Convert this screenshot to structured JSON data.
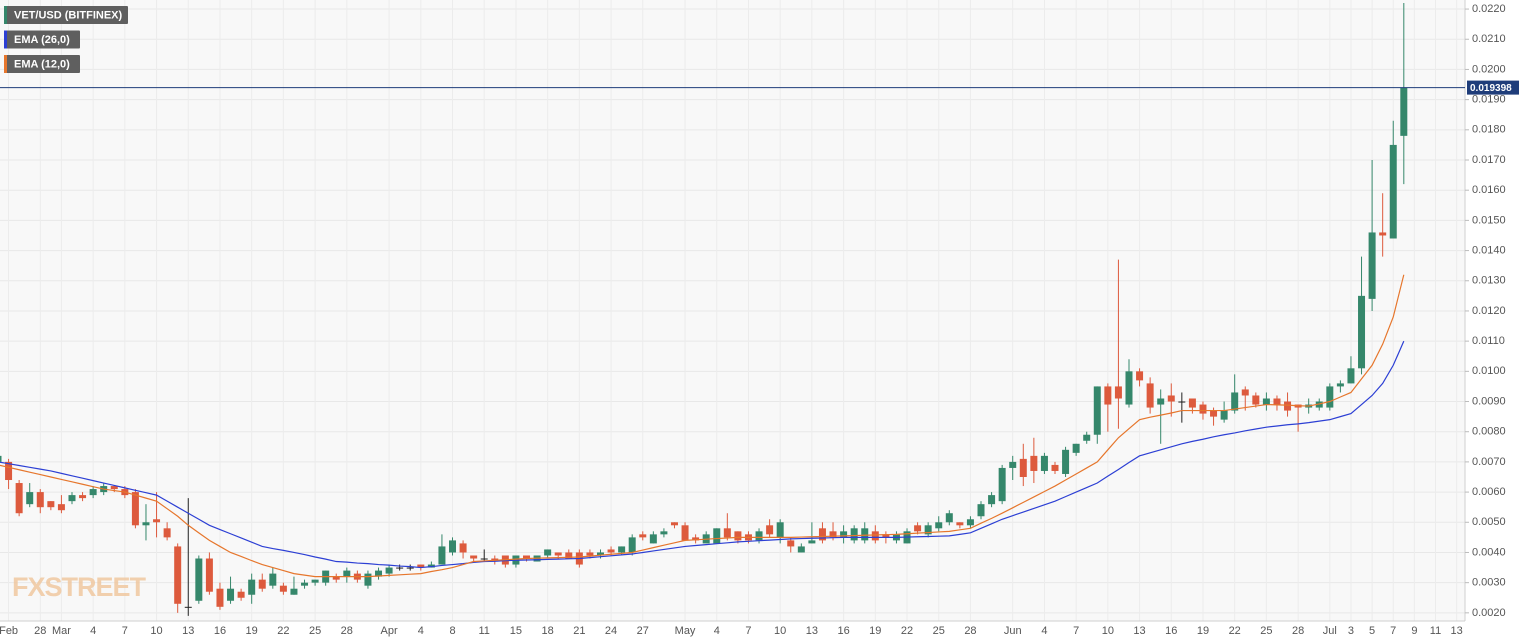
{
  "chart_data": {
    "type": "candlestick",
    "name": "VET/USD (BITFINEX)",
    "watermark": "FXSTREET",
    "up_color": "#35876b",
    "down_color": "#dd5a3d",
    "doji_color": "#222222",
    "last_price_color": "#1f3d7a",
    "grid": true,
    "ylim": [
      0.00173,
      0.0223
    ],
    "yticks": [
      {
        "value": 0.002,
        "label": "0.0020"
      },
      {
        "value": 0.003,
        "label": "0.0030"
      },
      {
        "value": 0.004,
        "label": "0.0040"
      },
      {
        "value": 0.005,
        "label": "0.0050"
      },
      {
        "value": 0.006,
        "label": "0.0060"
      },
      {
        "value": 0.007,
        "label": "0.0070"
      },
      {
        "value": 0.008,
        "label": "0.0080"
      },
      {
        "value": 0.009,
        "label": "0.0090"
      },
      {
        "value": 0.01,
        "label": "0.0100"
      },
      {
        "value": 0.011,
        "label": "0.0110"
      },
      {
        "value": 0.012,
        "label": "0.0120"
      },
      {
        "value": 0.013,
        "label": "0.0130"
      },
      {
        "value": 0.014,
        "label": "0.0140"
      },
      {
        "value": 0.015,
        "label": "0.0150"
      },
      {
        "value": 0.016,
        "label": "0.0160"
      },
      {
        "value": 0.017,
        "label": "0.0170"
      },
      {
        "value": 0.018,
        "label": "0.0180"
      },
      {
        "value": 0.019,
        "label": "0.0190"
      },
      {
        "value": 0.02,
        "label": "0.0200"
      },
      {
        "value": 0.021,
        "label": "0.0210"
      },
      {
        "value": 0.022,
        "label": "0.0220"
      }
    ],
    "categories": [
      null,
      "Feb",
      null,
      null,
      "28",
      null,
      "Mar",
      null,
      null,
      "4",
      null,
      null,
      "7",
      null,
      null,
      "10",
      null,
      null,
      "13",
      null,
      null,
      "16",
      null,
      null,
      "19",
      null,
      null,
      "22",
      null,
      null,
      "25",
      null,
      null,
      "28",
      null,
      null,
      null,
      "Apr",
      null,
      null,
      "4",
      null,
      null,
      "8",
      null,
      null,
      "11",
      null,
      null,
      "15",
      null,
      null,
      "18",
      null,
      null,
      "21",
      null,
      null,
      "24",
      null,
      null,
      "27",
      null,
      null,
      null,
      "May",
      null,
      null,
      "4",
      null,
      null,
      "7",
      null,
      null,
      "10",
      null,
      null,
      "13",
      null,
      null,
      "16",
      null,
      null,
      "19",
      null,
      null,
      "22",
      null,
      null,
      "25",
      null,
      null,
      "28",
      null,
      null,
      null,
      "Jun",
      null,
      null,
      "4",
      null,
      null,
      "7",
      null,
      null,
      "10",
      null,
      null,
      "13",
      null,
      null,
      "16",
      null,
      null,
      "19",
      null,
      null,
      "22",
      null,
      null,
      "25",
      null,
      null,
      "28",
      null,
      null,
      "Jul",
      null,
      "3",
      null,
      "5",
      null,
      "7",
      null,
      "9",
      null,
      "11",
      null,
      "13"
    ],
    "open": [
      0.007,
      0.007,
      0.0063,
      0.0056,
      0.006,
      0.0057,
      0.0056,
      0.0057,
      0.0059,
      0.0059,
      0.006,
      0.0062,
      0.0061,
      0.006,
      0.0049,
      0.0051,
      0.0048,
      0.0042,
      0.0022,
      0.0024,
      0.0038,
      0.0028,
      0.0024,
      0.0027,
      0.0026,
      0.0031,
      0.0029,
      0.0029,
      0.0026,
      0.0029,
      0.003,
      0.003,
      0.0032,
      0.0032,
      0.0033,
      0.0029,
      0.0032,
      0.0033,
      0.0035,
      0.0035,
      0.0036,
      0.0035,
      0.0036,
      0.004,
      0.0043,
      0.0039,
      0.0038,
      0.0038,
      0.0039,
      0.0036,
      0.0039,
      0.0037,
      0.0039,
      0.004,
      0.004,
      0.004,
      0.004,
      0.0039,
      0.0041,
      0.004,
      0.004,
      0.0046,
      0.0043,
      0.0046,
      0.005,
      0.0049,
      0.0045,
      0.0043,
      0.0043,
      0.0048,
      0.0047,
      0.0046,
      0.0044,
      0.0049,
      0.0045,
      0.0044,
      0.004,
      0.0043,
      0.0048,
      0.0047,
      0.0045,
      0.0044,
      0.0044,
      0.0047,
      0.0046,
      0.0044,
      0.0043,
      0.0049,
      0.0046,
      0.0048,
      0.005,
      0.005,
      0.0049,
      0.0052,
      0.0056,
      0.0057,
      0.0068,
      0.0071,
      0.0072,
      0.0067,
      0.0069,
      0.0066,
      0.0073,
      0.0077,
      0.0079,
      0.0095,
      0.0095,
      0.0089,
      0.01,
      0.0096,
      0.0089,
      0.0092,
      0.009,
      0.0091,
      0.0089,
      0.0087,
      0.0084,
      0.0087,
      0.0094,
      0.0092,
      0.0089,
      0.0091,
      0.009,
      0.0089,
      0.0088,
      0.0088,
      0.0088,
      0.0095,
      0.0096,
      0.0101,
      0.0124,
      0.0146,
      0.0144,
      0.0178,
      null,
      null,
      null,
      null,
      null
    ],
    "high": [
      0.0073,
      0.0071,
      0.0064,
      0.0063,
      0.0061,
      0.0057,
      0.0059,
      0.006,
      0.006,
      0.0062,
      0.0063,
      0.0062,
      0.0062,
      0.0061,
      0.0056,
      0.006,
      0.005,
      0.0043,
      0.0058,
      0.0039,
      0.004,
      0.003,
      0.0032,
      0.0028,
      0.0033,
      0.0033,
      0.0035,
      0.003,
      0.0032,
      0.0031,
      0.0031,
      0.0034,
      0.0033,
      0.0035,
      0.0034,
      0.0034,
      0.0035,
      0.0036,
      0.0036,
      0.0036,
      0.0036,
      0.0037,
      0.0046,
      0.0045,
      0.0044,
      0.0039,
      0.0041,
      0.0039,
      0.0039,
      0.0039,
      0.0039,
      0.0039,
      0.0041,
      0.004,
      0.0041,
      0.0041,
      0.0041,
      0.0041,
      0.0042,
      0.0042,
      0.0046,
      0.0047,
      0.0047,
      0.0048,
      0.005,
      0.005,
      0.0046,
      0.0047,
      0.0048,
      0.0053,
      0.0047,
      0.0047,
      0.0048,
      0.0051,
      0.0051,
      0.0045,
      0.0043,
      0.005,
      0.005,
      0.005,
      0.0049,
      0.0049,
      0.005,
      0.0049,
      0.0047,
      0.0047,
      0.0048,
      0.005,
      0.005,
      0.0052,
      0.0054,
      0.005,
      0.0052,
      0.0057,
      0.006,
      0.0069,
      0.0072,
      0.0076,
      0.0078,
      0.0073,
      0.007,
      0.0075,
      0.0076,
      0.008,
      0.0095,
      0.0096,
      0.0137,
      0.0104,
      0.0101,
      0.0098,
      0.0094,
      0.0096,
      0.0093,
      0.0091,
      0.009,
      0.0088,
      0.009,
      0.0099,
      0.0095,
      0.0093,
      0.0093,
      0.0092,
      0.0093,
      0.0089,
      0.0091,
      0.0091,
      0.0096,
      0.0097,
      0.0105,
      0.0138,
      0.017,
      0.0159,
      0.0183,
      0.0222,
      null,
      null,
      null,
      null,
      null
    ],
    "low": [
      0.0069,
      0.0061,
      0.0052,
      0.0055,
      0.0053,
      0.0054,
      0.0053,
      0.0056,
      0.0057,
      0.0058,
      0.0059,
      0.006,
      0.0058,
      0.0048,
      0.0044,
      0.0045,
      0.0044,
      0.002,
      0.0019,
      0.0023,
      0.0026,
      0.0021,
      0.0023,
      0.0024,
      0.0023,
      0.0027,
      0.0028,
      0.0026,
      0.0026,
      0.0028,
      0.0029,
      0.0029,
      0.003,
      0.003,
      0.003,
      0.0028,
      0.0031,
      0.0032,
      0.0034,
      0.0034,
      0.0034,
      0.0035,
      0.0036,
      0.0039,
      0.0038,
      0.0037,
      0.0037,
      0.0036,
      0.0035,
      0.0035,
      0.0037,
      0.0037,
      0.0038,
      0.0038,
      0.0038,
      0.0035,
      0.0038,
      0.0038,
      0.0039,
      0.0039,
      0.0039,
      0.0044,
      0.0043,
      0.0045,
      0.0048,
      0.0044,
      0.0043,
      0.0043,
      0.0043,
      0.0044,
      0.0043,
      0.0043,
      0.0043,
      0.0045,
      0.0043,
      0.004,
      0.004,
      0.0043,
      0.0043,
      0.0044,
      0.0043,
      0.0043,
      0.0043,
      0.0043,
      0.0043,
      0.0043,
      0.0043,
      0.0046,
      0.0045,
      0.0047,
      0.0049,
      0.0048,
      0.0048,
      0.0051,
      0.0055,
      0.0056,
      0.0064,
      0.0062,
      0.0063,
      0.0066,
      0.0066,
      0.0065,
      0.0072,
      0.0076,
      0.0076,
      0.008,
      0.0081,
      0.0088,
      0.0095,
      0.0086,
      0.0076,
      0.0085,
      0.0083,
      0.0086,
      0.0084,
      0.0082,
      0.0083,
      0.0086,
      0.0087,
      0.0088,
      0.0087,
      0.0087,
      0.0085,
      0.008,
      0.0086,
      0.0087,
      0.0087,
      0.0093,
      0.0096,
      0.0099,
      0.012,
      0.0138,
      0.0144,
      0.0162,
      null,
      null,
      null,
      null,
      null
    ],
    "close": [
      0.0072,
      0.0064,
      0.0053,
      0.006,
      0.0055,
      0.0055,
      0.0054,
      0.0059,
      0.0058,
      0.0061,
      0.0062,
      0.0061,
      0.0059,
      0.0049,
      0.005,
      0.005,
      0.0045,
      0.0023,
      0.0022,
      0.0038,
      0.0027,
      0.0022,
      0.0028,
      0.0025,
      0.0031,
      0.0028,
      0.0033,
      0.0027,
      0.0028,
      0.003,
      0.0031,
      0.0034,
      0.0031,
      0.0034,
      0.0031,
      0.0033,
      0.0034,
      0.0035,
      0.0035,
      0.0035,
      0.0035,
      0.0036,
      0.0042,
      0.0044,
      0.004,
      0.0038,
      0.0038,
      0.0037,
      0.0036,
      0.0039,
      0.0038,
      0.0039,
      0.0041,
      0.0039,
      0.0038,
      0.0036,
      0.0039,
      0.004,
      0.004,
      0.0042,
      0.0045,
      0.0045,
      0.0046,
      0.0047,
      0.0049,
      0.0044,
      0.0044,
      0.0046,
      0.0048,
      0.0045,
      0.0044,
      0.0044,
      0.0047,
      0.0046,
      0.005,
      0.0042,
      0.0042,
      0.0044,
      0.0044,
      0.0045,
      0.0047,
      0.0048,
      0.0048,
      0.0044,
      0.0045,
      0.0046,
      0.0047,
      0.0047,
      0.0049,
      0.005,
      0.0053,
      0.0049,
      0.0051,
      0.0056,
      0.0059,
      0.0068,
      0.007,
      0.0065,
      0.0067,
      0.0072,
      0.0067,
      0.0074,
      0.0076,
      0.0079,
      0.0095,
      0.0089,
      0.0091,
      0.01,
      0.0097,
      0.0088,
      0.0091,
      0.009,
      0.009,
      0.0088,
      0.0086,
      0.0085,
      0.0087,
      0.0093,
      0.0092,
      0.0089,
      0.0091,
      0.0089,
      0.0087,
      0.0088,
      0.0089,
      0.009,
      0.0095,
      0.0096,
      0.0101,
      0.0125,
      0.0146,
      0.0145,
      0.0175,
      0.019398,
      null,
      null,
      null,
      null,
      null
    ],
    "series": [
      {
        "name": "EMA (26,0)",
        "color": "#2c3fd4",
        "values": [
          0.007,
          0.00694,
          0.00688,
          0.00682,
          0.00676,
          0.0067,
          0.00662,
          0.00654,
          0.00646,
          0.00638,
          0.0063,
          0.00622,
          0.00614,
          0.00606,
          0.00598,
          0.0059,
          0.0057,
          0.0055,
          0.0053,
          0.0051,
          0.0049,
          0.00476,
          0.00462,
          0.00448,
          0.00434,
          0.0042,
          0.00413,
          0.00407,
          0.004,
          0.00393,
          0.00385,
          0.00378,
          0.0037,
          0.00368,
          0.00365,
          0.00363,
          0.0036,
          0.00358,
          0.00355,
          0.00353,
          0.0035,
          0.00353,
          0.00357,
          0.0036,
          0.00363,
          0.00367,
          0.0037,
          0.00371,
          0.00373,
          0.00374,
          0.00375,
          0.00376,
          0.00377,
          0.00378,
          0.00379,
          0.0038,
          0.00383,
          0.00386,
          0.00389,
          0.00392,
          0.00395,
          0.004,
          0.00405,
          0.0041,
          0.00415,
          0.0042,
          0.00423,
          0.00426,
          0.00429,
          0.00432,
          0.00435,
          0.00437,
          0.00439,
          0.00441,
          0.00443,
          0.00445,
          0.00446,
          0.00447,
          0.00448,
          0.00449,
          0.0045,
          0.0045,
          0.0045,
          0.0045,
          0.0045,
          0.0045,
          0.00451,
          0.00452,
          0.00453,
          0.00454,
          0.00455,
          0.0046,
          0.00465,
          0.0048,
          0.00495,
          0.0051,
          0.00522,
          0.00534,
          0.00546,
          0.00558,
          0.0057,
          0.00585,
          0.006,
          0.00615,
          0.0063,
          0.00653,
          0.00675,
          0.00698,
          0.0072,
          0.0073,
          0.0074,
          0.0075,
          0.0076,
          0.00768,
          0.00775,
          0.00783,
          0.0079,
          0.00796,
          0.00803,
          0.00809,
          0.00815,
          0.00819,
          0.00823,
          0.00826,
          0.0083,
          0.00835,
          0.0084,
          0.0085,
          0.0086,
          0.0089,
          0.0092,
          0.0096,
          0.0102,
          0.011,
          null,
          null,
          null,
          null,
          null
        ]
      },
      {
        "name": "EMA (12,0)",
        "color": "#e6762c",
        "values": [
          0.0069,
          0.00682,
          0.00674,
          0.00666,
          0.00658,
          0.0065,
          0.00642,
          0.00634,
          0.00626,
          0.00618,
          0.0061,
          0.00605,
          0.006,
          0.0059,
          0.0058,
          0.0057,
          0.00545,
          0.0052,
          0.0049,
          0.00465,
          0.0044,
          0.0042,
          0.004,
          0.00387,
          0.00373,
          0.0036,
          0.0035,
          0.0034,
          0.0033,
          0.00325,
          0.0032,
          0.0032,
          0.0032,
          0.0032,
          0.0032,
          0.0032,
          0.00322,
          0.00324,
          0.00326,
          0.00328,
          0.0033,
          0.00337,
          0.00343,
          0.0035,
          0.0036,
          0.0037,
          0.00372,
          0.00374,
          0.00376,
          0.00378,
          0.0038,
          0.00381,
          0.00382,
          0.00383,
          0.00384,
          0.00385,
          0.00388,
          0.00391,
          0.00394,
          0.00397,
          0.004,
          0.00408,
          0.00416,
          0.00424,
          0.00432,
          0.0044,
          0.00442,
          0.00444,
          0.00446,
          0.00448,
          0.0045,
          0.0045,
          0.0045,
          0.0045,
          0.0045,
          0.0045,
          0.00451,
          0.00452,
          0.00453,
          0.00454,
          0.00455,
          0.00456,
          0.00457,
          0.00458,
          0.00459,
          0.0046,
          0.00462,
          0.00464,
          0.00466,
          0.00468,
          0.0047,
          0.00475,
          0.0048,
          0.00497,
          0.00513,
          0.0053,
          0.00548,
          0.00566,
          0.00584,
          0.00602,
          0.0062,
          0.0064,
          0.0066,
          0.0068,
          0.007,
          0.0074,
          0.0078,
          0.0081,
          0.0084,
          0.00848,
          0.00855,
          0.00862,
          0.0087,
          0.0087,
          0.0087,
          0.0087,
          0.0087,
          0.00875,
          0.0088,
          0.00885,
          0.0089,
          0.00889,
          0.00888,
          0.00886,
          0.00885,
          0.00892,
          0.009,
          0.00915,
          0.0093,
          0.00975,
          0.0102,
          0.0109,
          0.0118,
          0.0132,
          null,
          null,
          null,
          null,
          null
        ]
      }
    ]
  }
}
